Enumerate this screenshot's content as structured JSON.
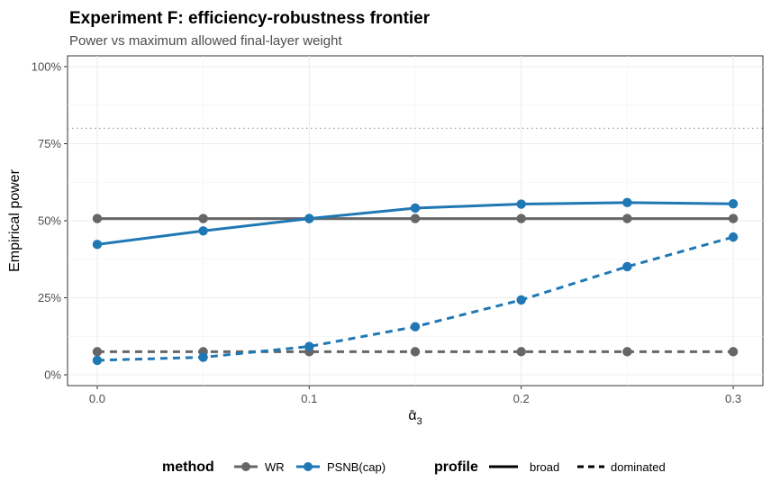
{
  "chart_data": {
    "type": "line",
    "title": "Experiment F: efficiency-robustness frontier",
    "subtitle": "Power vs maximum allowed final-layer weight",
    "xlabel": "ᾱ",
    "xlabel_subscript": "3",
    "ylabel": "Empirical power",
    "x": [
      0.0,
      0.05,
      0.1,
      0.15,
      0.2,
      0.25,
      0.3
    ],
    "xlim": [
      -0.014,
      0.314
    ],
    "ylim": [
      -0.035,
      1.035
    ],
    "x_ticks": [
      0.0,
      0.1,
      0.2,
      0.3
    ],
    "x_tick_labels": [
      "0.0",
      "0.1",
      "0.2",
      "0.3"
    ],
    "y_ticks": [
      0,
      0.25,
      0.5,
      0.75,
      1.0
    ],
    "y_tick_labels": [
      "0%",
      "25%",
      "50%",
      "75%",
      "100%"
    ],
    "reference_line": {
      "y": 0.8,
      "style": "dotted",
      "color": "#a0a0a0"
    },
    "grid": true,
    "series": [
      {
        "method": "WR",
        "profile": "broad",
        "color": "#666666",
        "dash": "solid",
        "values": [
          0.507,
          0.507,
          0.507,
          0.507,
          0.507,
          0.507,
          0.507
        ]
      },
      {
        "method": "WR",
        "profile": "dominated",
        "color": "#666666",
        "dash": "dashed",
        "values": [
          0.075,
          0.075,
          0.075,
          0.075,
          0.075,
          0.075,
          0.075
        ]
      },
      {
        "method": "PSNB(cap)",
        "profile": "broad",
        "color": "#1f78b4",
        "dash": "solid",
        "values": [
          0.423,
          0.467,
          0.507,
          0.541,
          0.554,
          0.559,
          0.555
        ]
      },
      {
        "method": "PSNB(cap)",
        "profile": "dominated",
        "color": "#1f78b4",
        "dash": "dashed",
        "values": [
          0.047,
          0.057,
          0.092,
          0.156,
          0.243,
          0.351,
          0.447
        ]
      }
    ],
    "legend": {
      "position": "bottom",
      "method_title": "method",
      "method_items": [
        {
          "label": "WR",
          "color": "#666666"
        },
        {
          "label": "PSNB(cap)",
          "color": "#1f78b4"
        }
      ],
      "profile_title": "profile",
      "profile_items": [
        {
          "label": "broad",
          "dash": "solid"
        },
        {
          "label": "dominated",
          "dash": "dashed"
        }
      ]
    }
  }
}
